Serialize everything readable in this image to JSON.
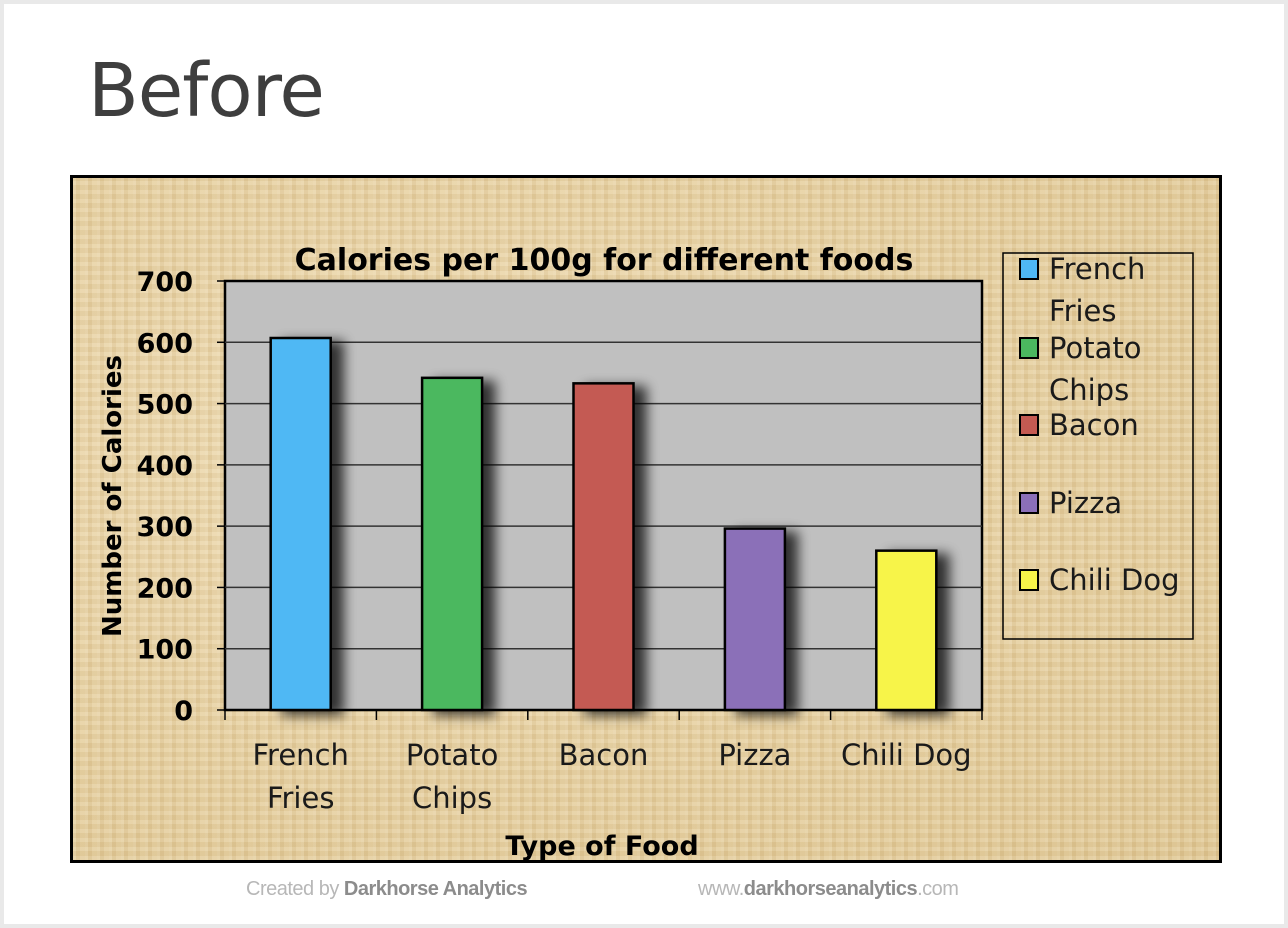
{
  "slide": {
    "title": "Before"
  },
  "chart_data": {
    "type": "bar",
    "title": "Calories per 100g for different foods",
    "xlabel": "Type of Food",
    "ylabel": "Number of Calories",
    "categories": [
      "French Fries",
      "Potato Chips",
      "Bacon",
      "Pizza",
      "Chili Dog"
    ],
    "category_lines": [
      [
        "French",
        "Fries"
      ],
      [
        "Potato",
        "Chips"
      ],
      [
        "Bacon"
      ],
      [
        "Pizza"
      ],
      [
        "Chili Dog"
      ]
    ],
    "values": [
      607,
      542,
      533,
      296,
      260
    ],
    "colors": [
      "#4fb8f4",
      "#4bb85f",
      "#c45a52",
      "#8b6fb8",
      "#f7f44a"
    ],
    "ylim": [
      0,
      700
    ],
    "yticks": [
      "0",
      "100",
      "200",
      "300",
      "400",
      "500",
      "600",
      "700"
    ],
    "grid": true,
    "legend": {
      "placement": "right",
      "entries": [
        [
          "French",
          "Fries"
        ],
        [
          "Potato",
          "Chips"
        ],
        [
          "Bacon"
        ],
        [
          "Pizza"
        ],
        [
          "Chili Dog"
        ]
      ]
    },
    "plot_background": "#c0c0c0",
    "chart_background": "#e5cf9e"
  },
  "footer": {
    "left_prefix": "Created by ",
    "left_brand": "Darkhorse Analytics",
    "right_prefix": "www.",
    "right_brand": "darkhorseanalytics",
    "right_suffix": ".com"
  }
}
